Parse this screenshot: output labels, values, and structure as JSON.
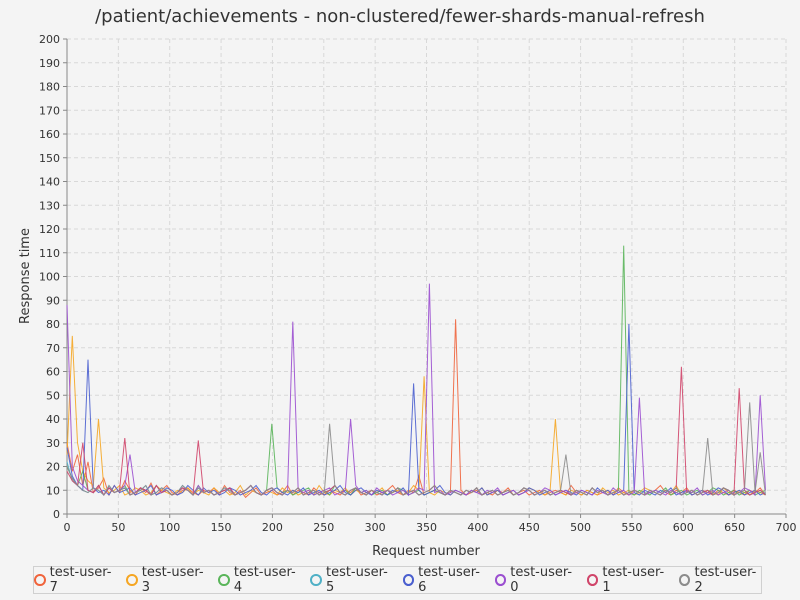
{
  "chart_data": {
    "type": "line",
    "title": "/patient/achievements - non-clustered/fewer-shards-manual-refresh",
    "xlabel": "Request number",
    "ylabel": "Response time",
    "xlim": [
      0,
      700
    ],
    "ylim": [
      0,
      200
    ],
    "xticks": [
      0,
      50,
      100,
      150,
      200,
      250,
      300,
      350,
      400,
      450,
      500,
      550,
      600,
      650,
      700
    ],
    "yticks": [
      0,
      10,
      20,
      30,
      40,
      50,
      60,
      70,
      80,
      90,
      100,
      110,
      120,
      130,
      140,
      150,
      160,
      170,
      180,
      190,
      200
    ],
    "grid": true,
    "legend_position": "bottom",
    "series": [
      {
        "name": "test-user-7",
        "color": "#f0643c",
        "values": [
          30,
          18,
          25,
          12,
          22,
          9,
          11,
          15,
          8,
          12,
          9,
          14,
          10,
          8,
          11,
          9,
          13,
          8,
          10,
          12,
          9,
          8,
          10,
          11,
          9,
          8,
          10,
          9,
          11,
          8,
          12,
          9,
          8,
          10,
          7,
          9,
          11,
          8,
          9,
          10,
          8,
          9,
          12,
          8,
          10,
          9,
          8,
          11,
          9,
          8,
          10,
          9,
          8,
          10,
          9,
          11,
          8,
          9,
          10,
          8,
          9,
          10,
          12,
          9,
          8,
          10,
          9,
          16,
          8,
          9,
          10,
          9,
          8,
          9,
          82,
          10,
          8,
          9,
          10,
          8,
          9,
          8,
          10,
          9,
          11,
          8,
          9,
          10,
          8,
          9,
          10,
          8,
          9,
          10,
          9,
          8,
          12,
          9,
          8,
          10,
          9,
          8,
          9,
          10,
          8,
          11,
          9,
          8,
          10,
          9,
          8,
          9,
          10,
          12,
          9,
          8,
          10,
          9,
          11,
          8,
          9,
          10,
          9,
          8,
          10,
          9,
          8,
          10,
          9,
          8,
          10,
          9,
          11,
          8
        ]
      },
      {
        "name": "test-user-3",
        "color": "#f5a623",
        "values": [
          25,
          75,
          30,
          18,
          14,
          12,
          40,
          11,
          9,
          10,
          12,
          8,
          9,
          11,
          10,
          8,
          9,
          12,
          10,
          9,
          8,
          10,
          9,
          11,
          8,
          10,
          9,
          8,
          11,
          9,
          10,
          8,
          9,
          12,
          8,
          10,
          9,
          8,
          10,
          9,
          8,
          11,
          9,
          10,
          8,
          9,
          10,
          8,
          12,
          9,
          8,
          10,
          9,
          11,
          8,
          10,
          9,
          8,
          10,
          9,
          11,
          8,
          9,
          10,
          8,
          9,
          12,
          10,
          58,
          9,
          8,
          10,
          9,
          8,
          10,
          9,
          8,
          10,
          9,
          11,
          8,
          9,
          10,
          8,
          9,
          10,
          8,
          9,
          11,
          10,
          9,
          8,
          10,
          40,
          9,
          8,
          10,
          9,
          8,
          10,
          9,
          8,
          11,
          9,
          10,
          8,
          9,
          10,
          8,
          9,
          11,
          10,
          9,
          8,
          10,
          9,
          12,
          8,
          9,
          10,
          8,
          9,
          10,
          9,
          8,
          11,
          9,
          8,
          10,
          9,
          8,
          10,
          9,
          8
        ]
      },
      {
        "name": "test-user-4",
        "color": "#5ab55a",
        "values": [
          20,
          15,
          12,
          18,
          10,
          9,
          12,
          8,
          11,
          9,
          10,
          12,
          8,
          9,
          11,
          10,
          8,
          12,
          9,
          10,
          8,
          9,
          11,
          10,
          8,
          12,
          9,
          10,
          8,
          9,
          10,
          11,
          8,
          9,
          10,
          12,
          9,
          8,
          10,
          38,
          11,
          9,
          10,
          8,
          9,
          10,
          11,
          8,
          9,
          10,
          8,
          12,
          9,
          10,
          8,
          11,
          9,
          10,
          8,
          9,
          10,
          8,
          9,
          11,
          10,
          8,
          9,
          10,
          8,
          9,
          10,
          9,
          8,
          10,
          9,
          8,
          10,
          9,
          11,
          8,
          9,
          10,
          8,
          9,
          10,
          8,
          9,
          11,
          10,
          8,
          9,
          10,
          8,
          9,
          10,
          9,
          8,
          10,
          9,
          8,
          11,
          9,
          10,
          8,
          9,
          10,
          113,
          9,
          8,
          10,
          9,
          8,
          10,
          9,
          11,
          8,
          9,
          10,
          8,
          9,
          10,
          8,
          9,
          11,
          10,
          8,
          9,
          10,
          8,
          9,
          10,
          8,
          9,
          10
        ]
      },
      {
        "name": "test-user-5",
        "color": "#4fb0c6",
        "values": [
          22,
          14,
          12,
          10,
          9,
          11,
          10,
          8,
          12,
          9,
          10,
          11,
          8,
          9,
          10,
          12,
          8,
          9,
          11,
          10,
          8,
          9,
          12,
          10,
          8,
          11,
          9,
          10,
          8,
          9,
          11,
          10,
          8,
          9,
          10,
          12,
          9,
          8,
          10,
          11,
          9,
          8,
          10,
          9,
          11,
          8,
          9,
          10,
          8,
          9,
          10,
          12,
          9,
          8,
          10,
          11,
          9,
          8,
          10,
          9,
          8,
          10,
          9,
          11,
          8,
          9,
          10,
          8,
          9,
          10,
          12,
          9,
          8,
          10,
          9,
          8,
          10,
          9,
          11,
          8,
          9,
          10,
          8,
          9,
          10,
          8,
          9,
          11,
          10,
          8,
          9,
          10,
          8,
          9,
          10,
          9,
          8,
          10,
          9,
          8,
          11,
          9,
          10,
          8,
          9,
          10,
          8,
          9,
          10,
          9,
          8,
          10,
          9,
          8,
          10,
          9,
          11,
          8,
          9,
          10,
          8,
          9,
          10,
          8,
          9,
          11,
          10,
          8,
          9,
          10,
          8,
          9,
          10,
          8
        ]
      },
      {
        "name": "test-user-6",
        "color": "#4a5fcf",
        "values": [
          28,
          16,
          12,
          10,
          65,
          11,
          9,
          10,
          8,
          12,
          9,
          10,
          11,
          8,
          9,
          10,
          12,
          8,
          9,
          11,
          10,
          8,
          9,
          12,
          10,
          8,
          11,
          9,
          10,
          8,
          9,
          11,
          10,
          8,
          9,
          10,
          12,
          9,
          8,
          10,
          11,
          9,
          8,
          10,
          9,
          11,
          8,
          9,
          10,
          8,
          9,
          10,
          12,
          9,
          8,
          10,
          11,
          9,
          8,
          10,
          9,
          8,
          10,
          9,
          11,
          8,
          55,
          10,
          8,
          9,
          10,
          12,
          9,
          8,
          10,
          9,
          8,
          10,
          9,
          11,
          8,
          9,
          10,
          8,
          9,
          10,
          8,
          9,
          11,
          10,
          8,
          9,
          10,
          8,
          9,
          10,
          9,
          8,
          10,
          9,
          8,
          11,
          9,
          10,
          8,
          9,
          10,
          80,
          9,
          8,
          10,
          9,
          8,
          10,
          9,
          11,
          8,
          9,
          10,
          8,
          9,
          10,
          8,
          9,
          11,
          10,
          8,
          9,
          10,
          8,
          9,
          10,
          8,
          9
        ]
      },
      {
        "name": "test-user-0",
        "color": "#9b4fd0",
        "values": [
          88,
          20,
          14,
          12,
          10,
          9,
          12,
          8,
          11,
          9,
          10,
          12,
          25,
          9,
          11,
          10,
          8,
          12,
          9,
          10,
          8,
          9,
          11,
          10,
          8,
          12,
          9,
          10,
          8,
          9,
          10,
          11,
          8,
          9,
          10,
          12,
          9,
          8,
          10,
          11,
          9,
          8,
          10,
          81,
          11,
          9,
          10,
          8,
          9,
          10,
          11,
          8,
          9,
          10,
          40,
          12,
          9,
          10,
          8,
          11,
          9,
          10,
          8,
          9,
          10,
          8,
          9,
          11,
          10,
          97,
          9,
          10,
          8,
          9,
          10,
          9,
          8,
          10,
          9,
          8,
          10,
          9,
          11,
          8,
          9,
          10,
          8,
          9,
          10,
          8,
          9,
          11,
          10,
          8,
          9,
          10,
          8,
          9,
          10,
          9,
          8,
          10,
          9,
          8,
          11,
          9,
          10,
          8,
          9,
          49,
          8,
          9,
          10,
          9,
          8,
          10,
          9,
          8,
          10,
          9,
          11,
          8,
          9,
          10,
          8,
          9,
          10,
          8,
          9,
          11,
          10,
          8,
          50,
          10
        ]
      },
      {
        "name": "test-user-1",
        "color": "#d0456a",
        "values": [
          18,
          14,
          12,
          30,
          10,
          9,
          12,
          8,
          11,
          9,
          10,
          32,
          8,
          9,
          11,
          10,
          8,
          12,
          9,
          10,
          8,
          9,
          11,
          10,
          8,
          31,
          9,
          10,
          8,
          9,
          10,
          11,
          8,
          9,
          10,
          12,
          9,
          8,
          10,
          11,
          9,
          8,
          10,
          9,
          11,
          8,
          9,
          10,
          8,
          9,
          10,
          12,
          9,
          8,
          10,
          11,
          9,
          8,
          10,
          9,
          8,
          10,
          9,
          11,
          8,
          9,
          10,
          8,
          9,
          10,
          12,
          9,
          8,
          10,
          9,
          8,
          10,
          9,
          11,
          8,
          9,
          10,
          8,
          9,
          10,
          8,
          9,
          11,
          10,
          8,
          9,
          10,
          8,
          9,
          10,
          9,
          8,
          10,
          9,
          8,
          11,
          9,
          10,
          8,
          9,
          10,
          8,
          9,
          10,
          9,
          8,
          10,
          9,
          8,
          10,
          9,
          11,
          62,
          9,
          10,
          8,
          9,
          10,
          8,
          9,
          11,
          10,
          8,
          53,
          10,
          8,
          9,
          10,
          8
        ]
      },
      {
        "name": "test-user-2",
        "color": "#8c8c8c",
        "values": [
          20,
          15,
          12,
          10,
          9,
          11,
          10,
          8,
          12,
          9,
          10,
          11,
          8,
          9,
          10,
          12,
          8,
          9,
          11,
          10,
          8,
          9,
          12,
          10,
          8,
          11,
          9,
          10,
          8,
          9,
          11,
          10,
          8,
          9,
          10,
          12,
          9,
          8,
          10,
          11,
          9,
          8,
          10,
          9,
          11,
          8,
          9,
          10,
          8,
          9,
          38,
          12,
          9,
          8,
          10,
          11,
          9,
          8,
          10,
          9,
          8,
          10,
          9,
          11,
          8,
          9,
          10,
          8,
          9,
          10,
          12,
          9,
          8,
          10,
          9,
          8,
          10,
          9,
          11,
          8,
          9,
          10,
          8,
          9,
          10,
          8,
          9,
          11,
          10,
          8,
          9,
          10,
          8,
          9,
          10,
          25,
          8,
          10,
          9,
          8,
          11,
          9,
          10,
          8,
          9,
          10,
          8,
          9,
          10,
          9,
          8,
          10,
          9,
          8,
          10,
          9,
          11,
          8,
          9,
          10,
          8,
          9,
          32,
          8,
          9,
          11,
          10,
          8,
          9,
          10,
          47,
          9,
          26,
          8
        ]
      }
    ]
  }
}
